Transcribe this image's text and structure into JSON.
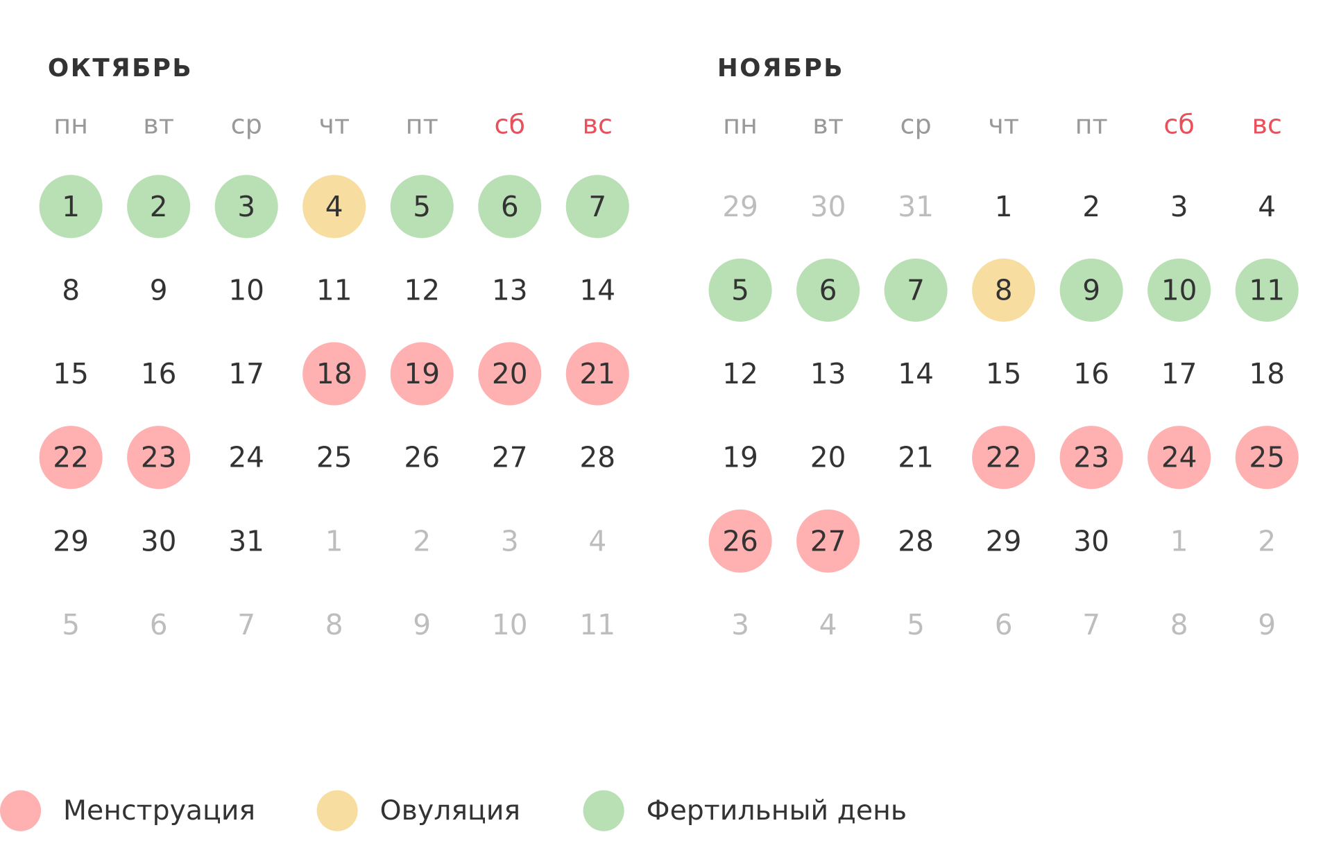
{
  "colors": {
    "menstruation": "#ffb0b0",
    "ovulation": "#f7dda0",
    "fertile": "#b9dfb4",
    "weekday": "#999999",
    "weekend": "#e8505b",
    "day": "#333333",
    "muted": "#bdbdbd"
  },
  "months": [
    {
      "title": "ОКТЯБРЬ",
      "weekdays": [
        {
          "text": "пн"
        },
        {
          "text": "вт"
        },
        {
          "text": "ср"
        },
        {
          "text": "чт"
        },
        {
          "text": "пт"
        },
        {
          "text": "сб",
          "weekend": true
        },
        {
          "text": "вс",
          "weekend": true
        }
      ],
      "weeks": [
        [
          {
            "day": 1,
            "mark": "fertile"
          },
          {
            "day": 2,
            "mark": "fertile"
          },
          {
            "day": 3,
            "mark": "fertile"
          },
          {
            "day": 4,
            "mark": "ovulation"
          },
          {
            "day": 5,
            "mark": "fertile"
          },
          {
            "day": 6,
            "mark": "fertile"
          },
          {
            "day": 7,
            "mark": "fertile"
          }
        ],
        [
          {
            "day": 8
          },
          {
            "day": 9
          },
          {
            "day": 10
          },
          {
            "day": 11
          },
          {
            "day": 12
          },
          {
            "day": 13
          },
          {
            "day": 14
          }
        ],
        [
          {
            "day": 15
          },
          {
            "day": 16
          },
          {
            "day": 17
          },
          {
            "day": 18,
            "mark": "menstruation"
          },
          {
            "day": 19,
            "mark": "menstruation"
          },
          {
            "day": 20,
            "mark": "menstruation"
          },
          {
            "day": 21,
            "mark": "menstruation"
          }
        ],
        [
          {
            "day": 22,
            "mark": "menstruation"
          },
          {
            "day": 23,
            "mark": "menstruation"
          },
          {
            "day": 24
          },
          {
            "day": 25
          },
          {
            "day": 26
          },
          {
            "day": 27
          },
          {
            "day": 28
          }
        ],
        [
          {
            "day": 29
          },
          {
            "day": 30
          },
          {
            "day": 31
          },
          {
            "day": 1,
            "muted": true
          },
          {
            "day": 2,
            "muted": true
          },
          {
            "day": 3,
            "muted": true
          },
          {
            "day": 4,
            "muted": true
          }
        ],
        [
          {
            "day": 5,
            "muted": true
          },
          {
            "day": 6,
            "muted": true
          },
          {
            "day": 7,
            "muted": true
          },
          {
            "day": 8,
            "muted": true
          },
          {
            "day": 9,
            "muted": true
          },
          {
            "day": 10,
            "muted": true
          },
          {
            "day": 11,
            "muted": true
          }
        ]
      ]
    },
    {
      "title": "НОЯБРЬ",
      "weekdays": [
        {
          "text": "пн"
        },
        {
          "text": "вт"
        },
        {
          "text": "ср"
        },
        {
          "text": "чт"
        },
        {
          "text": "пт"
        },
        {
          "text": "сб",
          "weekend": true
        },
        {
          "text": "вс",
          "weekend": true
        }
      ],
      "weeks": [
        [
          {
            "day": 29,
            "muted": true
          },
          {
            "day": 30,
            "muted": true
          },
          {
            "day": 31,
            "muted": true
          },
          {
            "day": 1
          },
          {
            "day": 2
          },
          {
            "day": 3
          },
          {
            "day": 4
          }
        ],
        [
          {
            "day": 5,
            "mark": "fertile"
          },
          {
            "day": 6,
            "mark": "fertile"
          },
          {
            "day": 7,
            "mark": "fertile"
          },
          {
            "day": 8,
            "mark": "ovulation"
          },
          {
            "day": 9,
            "mark": "fertile"
          },
          {
            "day": 10,
            "mark": "fertile"
          },
          {
            "day": 11,
            "mark": "fertile"
          }
        ],
        [
          {
            "day": 12
          },
          {
            "day": 13
          },
          {
            "day": 14
          },
          {
            "day": 15
          },
          {
            "day": 16
          },
          {
            "day": 17
          },
          {
            "day": 18
          }
        ],
        [
          {
            "day": 19
          },
          {
            "day": 20
          },
          {
            "day": 21
          },
          {
            "day": 22,
            "mark": "menstruation"
          },
          {
            "day": 23,
            "mark": "menstruation"
          },
          {
            "day": 24,
            "mark": "menstruation"
          },
          {
            "day": 25,
            "mark": "menstruation"
          }
        ],
        [
          {
            "day": 26,
            "mark": "menstruation"
          },
          {
            "day": 27,
            "mark": "menstruation"
          },
          {
            "day": 28
          },
          {
            "day": 29
          },
          {
            "day": 30
          },
          {
            "day": 1,
            "muted": true
          },
          {
            "day": 2,
            "muted": true
          }
        ],
        [
          {
            "day": 3,
            "muted": true
          },
          {
            "day": 4,
            "muted": true
          },
          {
            "day": 5,
            "muted": true
          },
          {
            "day": 6,
            "muted": true
          },
          {
            "day": 7,
            "muted": true
          },
          {
            "day": 8,
            "muted": true
          },
          {
            "day": 9,
            "muted": true
          }
        ]
      ]
    }
  ],
  "legend": [
    {
      "label": "Менструация",
      "mark": "menstruation"
    },
    {
      "label": "Овуляция",
      "mark": "ovulation"
    },
    {
      "label": "Фертильный день",
      "mark": "fertile"
    }
  ]
}
